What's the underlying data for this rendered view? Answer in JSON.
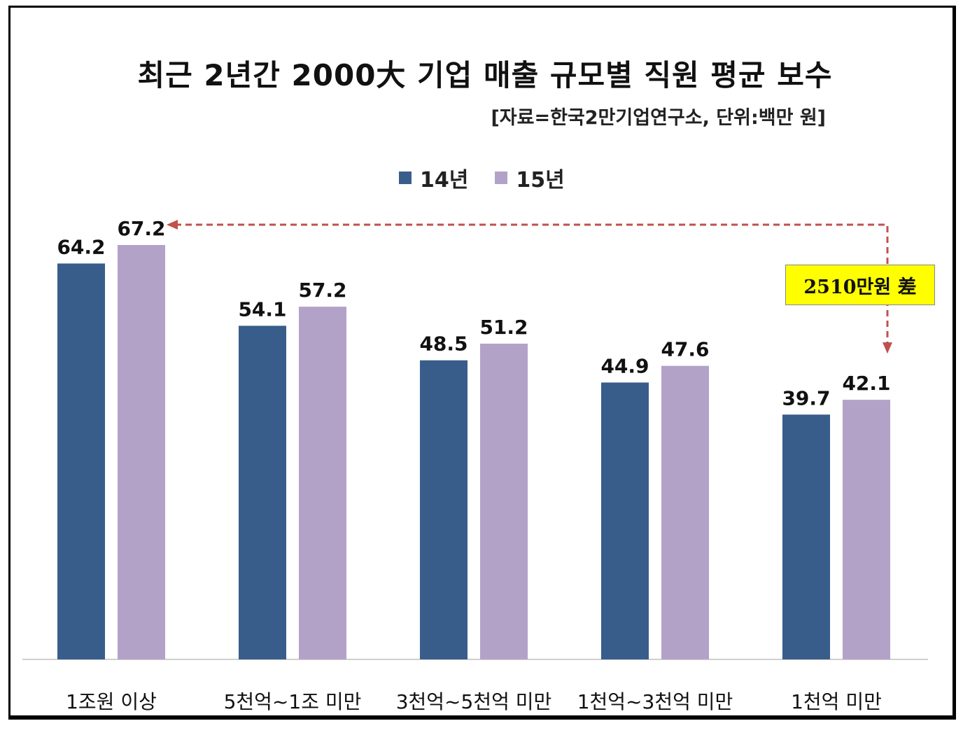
{
  "chart_data": {
    "type": "bar",
    "title": "최근 2년간 2000大 기업 매출 규모별 직원 평균 보수",
    "subtitle": "[자료=한국2만기업연구소, 단위:백만 원]",
    "categories": [
      "1조원 이상",
      "5천억~1조 미만",
      "3천억~5천억 미만",
      "1천억~3천억 미만",
      "1천억 미만"
    ],
    "series": [
      {
        "name": "14년",
        "values": [
          64.2,
          54.1,
          48.5,
          44.9,
          39.7
        ],
        "color": "#385d8a"
      },
      {
        "name": "15년",
        "values": [
          67.2,
          57.2,
          51.2,
          47.6,
          42.1
        ],
        "color": "#b3a2c7"
      }
    ],
    "ylim": [
      0,
      67.2
    ],
    "grid": false,
    "legend_position": "top",
    "annotation": {
      "text": "2510만원 差",
      "color": "#ffff00",
      "arrow_color": "#c0504d"
    }
  }
}
